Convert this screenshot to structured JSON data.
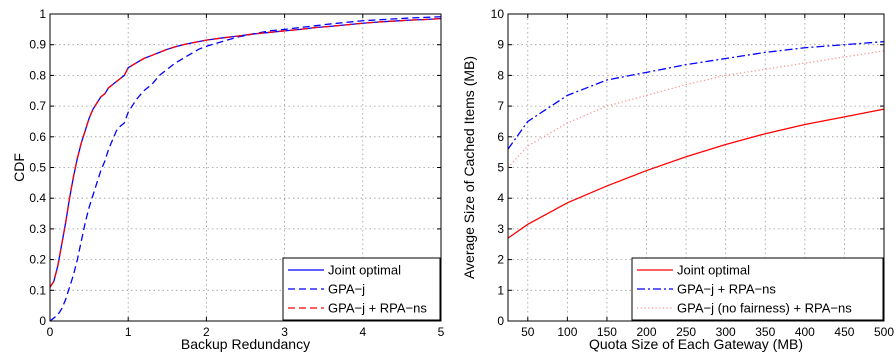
{
  "chart_data": [
    {
      "type": "line",
      "title": "",
      "xlabel": "Backup Redundancy",
      "ylabel": "CDF",
      "xlim": [
        0,
        5
      ],
      "ylim": [
        0,
        1
      ],
      "xticks": [
        "0",
        "1",
        "2",
        "3",
        "4",
        "5"
      ],
      "yticks": [
        "0",
        "0.1",
        "0.2",
        "0.3",
        "0.4",
        "0.5",
        "0.6",
        "0.7",
        "0.8",
        "0.9",
        "1"
      ],
      "grid": true,
      "legend_position": "bottom-right",
      "series": [
        {
          "name": "Joint optimal",
          "color": "#0000ff",
          "dash": "solid",
          "x": [
            0,
            0.05,
            0.1,
            0.15,
            0.2,
            0.25,
            0.3,
            0.35,
            0.4,
            0.45,
            0.5,
            0.55,
            0.6,
            0.65,
            0.7,
            0.75,
            0.8,
            0.85,
            0.9,
            0.95,
            1.0,
            1.1,
            1.2,
            1.3,
            1.4,
            1.5,
            1.6,
            1.7,
            1.8,
            1.9,
            2.0,
            2.2,
            2.4,
            2.6,
            2.8,
            3.0,
            3.2,
            3.4,
            3.6,
            3.8,
            4.0,
            4.2,
            4.4,
            4.6,
            4.8,
            5.0
          ],
          "y": [
            0.11,
            0.13,
            0.18,
            0.25,
            0.32,
            0.4,
            0.47,
            0.53,
            0.58,
            0.62,
            0.66,
            0.69,
            0.71,
            0.73,
            0.74,
            0.76,
            0.77,
            0.78,
            0.79,
            0.8,
            0.825,
            0.84,
            0.855,
            0.865,
            0.875,
            0.885,
            0.893,
            0.9,
            0.905,
            0.91,
            0.915,
            0.922,
            0.928,
            0.935,
            0.94,
            0.945,
            0.95,
            0.956,
            0.96,
            0.965,
            0.97,
            0.974,
            0.977,
            0.98,
            0.982,
            0.985
          ]
        },
        {
          "name": "GPA−j",
          "color": "#0000ff",
          "dash": "dashed",
          "x": [
            0,
            0.05,
            0.1,
            0.15,
            0.2,
            0.25,
            0.3,
            0.35,
            0.4,
            0.45,
            0.5,
            0.55,
            0.6,
            0.65,
            0.7,
            0.75,
            0.8,
            0.85,
            0.9,
            0.95,
            1.0,
            1.1,
            1.2,
            1.3,
            1.4,
            1.5,
            1.6,
            1.7,
            1.8,
            1.9,
            2.0,
            2.2,
            2.4,
            2.6,
            2.8,
            3.0,
            3.2,
            3.4,
            3.6,
            3.8,
            4.0,
            4.2,
            4.4,
            4.6,
            4.8,
            5.0
          ],
          "y": [
            0.0,
            0.01,
            0.02,
            0.04,
            0.07,
            0.11,
            0.15,
            0.2,
            0.26,
            0.32,
            0.37,
            0.41,
            0.45,
            0.49,
            0.52,
            0.56,
            0.59,
            0.62,
            0.635,
            0.645,
            0.68,
            0.72,
            0.75,
            0.77,
            0.8,
            0.82,
            0.84,
            0.855,
            0.87,
            0.885,
            0.895,
            0.91,
            0.925,
            0.935,
            0.945,
            0.95,
            0.956,
            0.962,
            0.968,
            0.973,
            0.978,
            0.981,
            0.984,
            0.987,
            0.989,
            0.991
          ]
        },
        {
          "name": "GPA−j + RPA−ns",
          "color": "#ff0000",
          "dash": "dashed",
          "x": [
            0,
            0.05,
            0.1,
            0.15,
            0.2,
            0.25,
            0.3,
            0.35,
            0.4,
            0.45,
            0.5,
            0.55,
            0.6,
            0.65,
            0.7,
            0.75,
            0.8,
            0.85,
            0.9,
            0.95,
            1.0,
            1.1,
            1.2,
            1.3,
            1.4,
            1.5,
            1.6,
            1.7,
            1.8,
            1.9,
            2.0,
            2.2,
            2.4,
            2.6,
            2.8,
            3.0,
            3.2,
            3.4,
            3.6,
            3.8,
            4.0,
            4.2,
            4.4,
            4.6,
            4.8,
            5.0
          ],
          "y": [
            0.11,
            0.13,
            0.18,
            0.25,
            0.32,
            0.4,
            0.47,
            0.53,
            0.58,
            0.62,
            0.66,
            0.69,
            0.71,
            0.73,
            0.74,
            0.76,
            0.77,
            0.78,
            0.79,
            0.8,
            0.825,
            0.84,
            0.855,
            0.865,
            0.875,
            0.885,
            0.893,
            0.9,
            0.905,
            0.91,
            0.915,
            0.922,
            0.928,
            0.935,
            0.94,
            0.945,
            0.95,
            0.956,
            0.96,
            0.965,
            0.97,
            0.974,
            0.977,
            0.98,
            0.982,
            0.985
          ]
        }
      ]
    },
    {
      "type": "line",
      "title": "",
      "xlabel": "Quota Size of Each Gateway (MB)",
      "ylabel": "Average Size of Cached Items (MB)",
      "xlim": [
        25,
        500
      ],
      "ylim": [
        0,
        10
      ],
      "xticks": [
        "50",
        "100",
        "150",
        "200",
        "250",
        "300",
        "350",
        "400",
        "450",
        "500"
      ],
      "yticks": [
        "0",
        "1",
        "2",
        "3",
        "4",
        "5",
        "6",
        "7",
        "8",
        "9",
        "10"
      ],
      "grid": true,
      "legend_position": "bottom-right",
      "series": [
        {
          "name": "Joint optimal",
          "color": "#ff0000",
          "dash": "solid",
          "x": [
            25,
            50,
            100,
            150,
            200,
            250,
            300,
            350,
            400,
            450,
            500
          ],
          "y": [
            2.7,
            3.15,
            3.85,
            4.4,
            4.9,
            5.35,
            5.75,
            6.1,
            6.4,
            6.65,
            6.9
          ]
        },
        {
          "name": "GPA−j + RPA−ns",
          "color": "#0000ff",
          "dash": "dashdot",
          "x": [
            25,
            50,
            100,
            150,
            200,
            250,
            300,
            350,
            400,
            450,
            500
          ],
          "y": [
            5.6,
            6.5,
            7.35,
            7.85,
            8.1,
            8.35,
            8.55,
            8.75,
            8.9,
            9.0,
            9.1
          ]
        },
        {
          "name": "GPA−j (no fairness) + RPA−ns",
          "color": "#ff9090",
          "dash": "dotted",
          "x": [
            25,
            50,
            100,
            150,
            200,
            250,
            300,
            350,
            400,
            450,
            500
          ],
          "y": [
            5.0,
            5.7,
            6.45,
            7.0,
            7.35,
            7.7,
            8.0,
            8.2,
            8.4,
            8.6,
            8.8
          ]
        }
      ]
    }
  ]
}
